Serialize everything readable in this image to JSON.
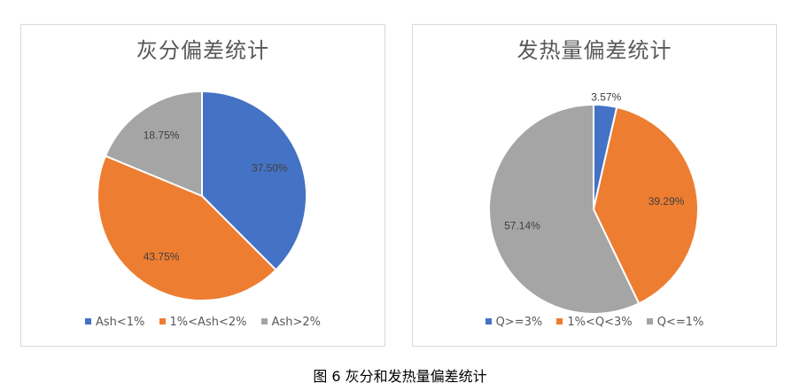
{
  "caption": "图 6 灰分和发热量偏差统计",
  "chart_data": [
    {
      "type": "pie",
      "title": "灰分偏差统计",
      "categories": [
        "Ash<1%",
        "1%<Ash<2%",
        "Ash>2%"
      ],
      "values": [
        37.5,
        43.75,
        18.75
      ],
      "data_labels": [
        "37.50%",
        "43.75%",
        "18.75%"
      ],
      "colors": [
        "#4472c4",
        "#ed7d31",
        "#a5a5a5"
      ],
      "legend_position": "bottom"
    },
    {
      "type": "pie",
      "title": "发热量偏差统计",
      "categories": [
        "Q>=3%",
        "1%<Q<3%",
        "Q<=1%"
      ],
      "values": [
        3.57,
        39.29,
        57.14
      ],
      "data_labels": [
        "3.57%",
        "39.29%",
        "57.14%"
      ],
      "colors": [
        "#4472c4",
        "#ed7d31",
        "#a5a5a5"
      ],
      "legend_position": "bottom"
    }
  ]
}
